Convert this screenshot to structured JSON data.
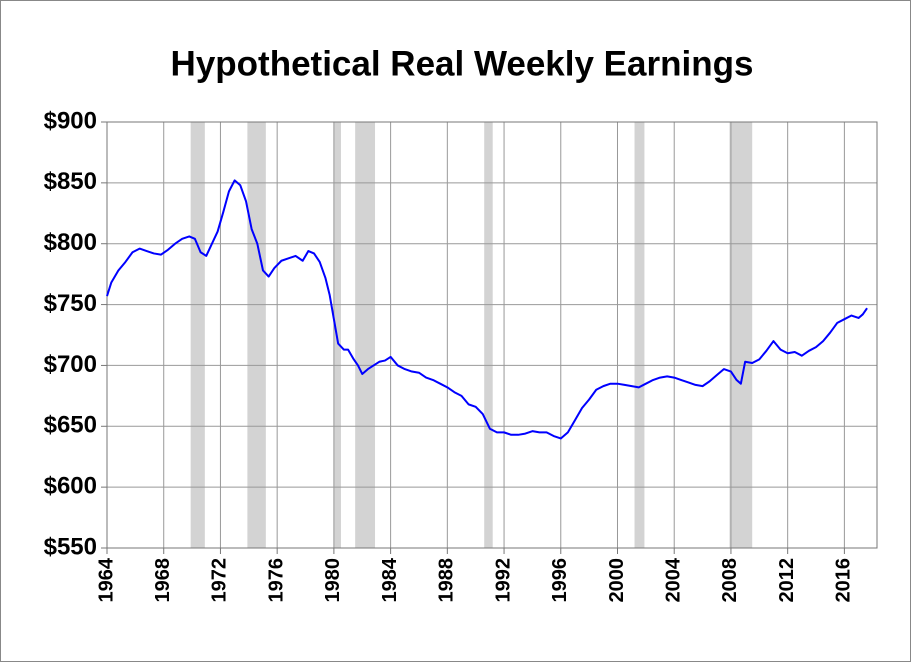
{
  "chart_data": {
    "type": "line",
    "title": "Hypothetical Real Weekly Earnings",
    "x": [
      1964.0,
      1964.3,
      1964.8,
      1965.3,
      1965.8,
      1966.3,
      1966.8,
      1967.3,
      1967.8,
      1968.3,
      1968.8,
      1969.3,
      1969.8,
      1970.2,
      1970.6,
      1971.0,
      1971.4,
      1971.8,
      1972.2,
      1972.6,
      1973.0,
      1973.4,
      1973.8,
      1974.2,
      1974.6,
      1975.0,
      1975.4,
      1975.8,
      1976.3,
      1976.8,
      1977.3,
      1977.8,
      1978.2,
      1978.6,
      1979.0,
      1979.4,
      1979.7,
      1980.0,
      1980.3,
      1980.7,
      1981.0,
      1981.4,
      1981.7,
      1982.0,
      1982.4,
      1982.8,
      1983.2,
      1983.6,
      1984.0,
      1984.5,
      1985.0,
      1985.5,
      1986.0,
      1986.5,
      1987.0,
      1987.5,
      1988.0,
      1988.5,
      1989.0,
      1989.5,
      1990.0,
      1990.5,
      1991.0,
      1991.5,
      1992.0,
      1992.5,
      1993.0,
      1993.5,
      1994.0,
      1994.5,
      1995.0,
      1995.5,
      1996.0,
      1996.5,
      1997.0,
      1997.5,
      1998.0,
      1998.5,
      1999.0,
      1999.5,
      2000.0,
      2000.5,
      2001.0,
      2001.5,
      2002.0,
      2002.5,
      2003.0,
      2003.5,
      2004.0,
      2004.5,
      2005.0,
      2005.5,
      2006.0,
      2006.5,
      2007.0,
      2007.5,
      2008.0,
      2008.4,
      2008.7,
      2009.0,
      2009.5,
      2010.0,
      2010.5,
      2011.0,
      2011.5,
      2012.0,
      2012.5,
      2013.0,
      2013.5,
      2014.0,
      2014.5,
      2015.0,
      2015.5,
      2016.0,
      2016.5,
      2017.0,
      2017.3,
      2017.6
    ],
    "series": [
      {
        "color": "#0000ff",
        "values": [
          757,
          768,
          778,
          785,
          793,
          796,
          794,
          792,
          791,
          795,
          800,
          804,
          806,
          804,
          793,
          790,
          800,
          810,
          826,
          843,
          852,
          848,
          835,
          812,
          800,
          778,
          773,
          780,
          786,
          788,
          790,
          786,
          794,
          792,
          785,
          772,
          758,
          738,
          718,
          713,
          713,
          705,
          700,
          693,
          697,
          700,
          703,
          704,
          707,
          700,
          697,
          695,
          694,
          690,
          688,
          685,
          682,
          678,
          675,
          668,
          666,
          660,
          648,
          645,
          645,
          643,
          643,
          644,
          646,
          645,
          645,
          642,
          640,
          645,
          655,
          665,
          672,
          680,
          683,
          685,
          685,
          684,
          683,
          682,
          685,
          688,
          690,
          691,
          690,
          688,
          686,
          684,
          683,
          687,
          692,
          697,
          695,
          688,
          685,
          703,
          702,
          705,
          712,
          720,
          713,
          710,
          711,
          708,
          712,
          715,
          720,
          727,
          735,
          738,
          741,
          739,
          742,
          747
        ]
      }
    ],
    "recessions": [
      [
        1969.9,
        1970.9
      ],
      [
        1973.9,
        1975.2
      ],
      [
        1980.0,
        1980.5
      ],
      [
        1981.5,
        1982.9
      ],
      [
        1990.6,
        1991.2
      ],
      [
        2001.2,
        2001.9
      ],
      [
        2007.9,
        2009.5
      ]
    ],
    "recession_color": "#d3d3d3",
    "xlim": [
      1964,
      2018.3
    ],
    "xticks": [
      1964,
      1968,
      1972,
      1976,
      1980,
      1984,
      1988,
      1992,
      1996,
      2000,
      2004,
      2008,
      2012,
      2016
    ],
    "ylim": [
      550,
      900
    ],
    "yticks": [
      {
        "value": 550,
        "label": "$550"
      },
      {
        "value": 600,
        "label": "$600"
      },
      {
        "value": 650,
        "label": "$650"
      },
      {
        "value": 700,
        "label": "$700"
      },
      {
        "value": 750,
        "label": "$750"
      },
      {
        "value": 800,
        "label": "$800"
      },
      {
        "value": 850,
        "label": "$850"
      },
      {
        "value": 900,
        "label": "$900"
      }
    ],
    "grid": true
  }
}
